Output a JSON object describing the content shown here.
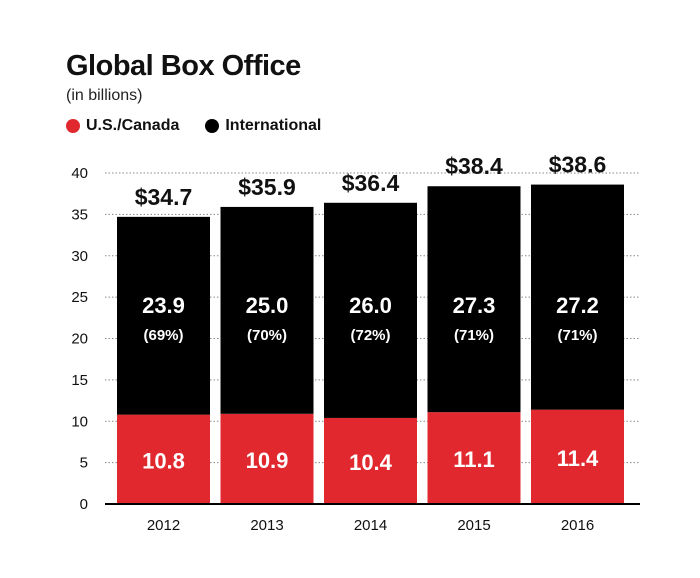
{
  "colors": {
    "us_canada": "#e0282e",
    "international": "#000000",
    "grid": "#888888"
  },
  "chart_data": {
    "type": "bar",
    "stacked": true,
    "title": "Global Box Office",
    "subtitle": "(in billions)",
    "categories": [
      "2012",
      "2013",
      "2014",
      "2015",
      "2016"
    ],
    "series": [
      {
        "name": "U.S./Canada",
        "values": [
          10.8,
          10.9,
          10.4,
          11.1,
          11.4
        ],
        "labels": [
          "10.8",
          "10.9",
          "10.4",
          "11.1",
          "11.4"
        ]
      },
      {
        "name": "International",
        "values": [
          23.9,
          25.0,
          26.0,
          27.3,
          27.2
        ],
        "labels": [
          "23.9",
          "25.0",
          "26.0",
          "27.3",
          "27.2"
        ],
        "share_labels": [
          "(69%)",
          "(70%)",
          "(72%)",
          "(71%)",
          "(71%)"
        ]
      }
    ],
    "totals": [
      34.7,
      35.9,
      36.4,
      38.4,
      38.6
    ],
    "total_labels": [
      "$34.7",
      "$35.9",
      "$36.4",
      "$38.4",
      "$38.6"
    ],
    "ylim": [
      0,
      40
    ],
    "yticks": [
      0,
      5,
      10,
      15,
      20,
      25,
      30,
      35,
      40
    ],
    "grid": true,
    "legend_position": "top-left",
    "xlabel": "",
    "ylabel": ""
  }
}
